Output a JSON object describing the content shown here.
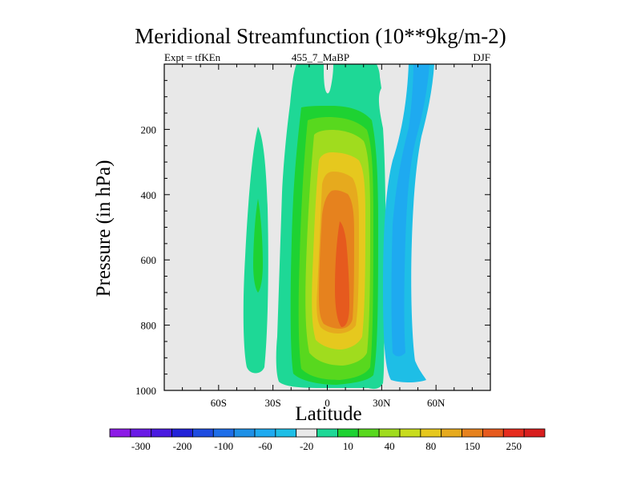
{
  "chart_data": {
    "type": "heatmap",
    "title": "Meridional Streamfunction (10**9kg/m-2)",
    "subtitle_left": "Expt = tfKEn",
    "subtitle_center": "455_7_MaBP",
    "subtitle_right": "DJF",
    "xlabel": "Latitude",
    "ylabel": "Pressure (in hPa)",
    "xlim": [
      -90,
      90
    ],
    "ylim": [
      1000,
      0
    ],
    "x_ticks": [
      {
        "value": -60,
        "label": "60S"
      },
      {
        "value": -30,
        "label": "30S"
      },
      {
        "value": 0,
        "label": "0"
      },
      {
        "value": 30,
        "label": "30N"
      },
      {
        "value": 60,
        "label": "60N"
      }
    ],
    "y_ticks": [
      200,
      400,
      600,
      800,
      1000
    ],
    "background_color": "#e8e8e8",
    "colorbar": {
      "labels": [
        "-300",
        "-200",
        "-100",
        "-60",
        "-20",
        "10",
        "40",
        "80",
        "150",
        "250"
      ],
      "colors": [
        "#8c1ae6",
        "#6a1ae6",
        "#4a1ae0",
        "#2222d8",
        "#1e4ce0",
        "#1e6ee8",
        "#1e90e6",
        "#1eaaf0",
        "#1ebee6",
        "#e8e8e8",
        "#1ed896",
        "#1ed232",
        "#58d81e",
        "#a0dc1e",
        "#c8dc1e",
        "#e6c81e",
        "#e6aa1e",
        "#e6821e",
        "#e65a1e",
        "#e62c1e",
        "#d81e1e"
      ]
    },
    "contour_levels": [
      -20,
      10,
      20,
      40,
      60,
      80,
      100,
      150,
      200
    ],
    "features": [
      {
        "name": "southern-hemisphere-cell",
        "sign": "positive",
        "max_level": 20,
        "lat_range": [
          -40,
          -30
        ],
        "p_range": [
          180,
          950
        ],
        "core_p": 600
      },
      {
        "name": "main-cell",
        "sign": "positive",
        "max_level": 200,
        "lat_range": [
          -15,
          30
        ],
        "p_range": [
          0,
          1000
        ],
        "core_lat": 8,
        "core_p": 650
      },
      {
        "name": "northern-ferrel-cell",
        "sign": "negative",
        "max_level": -20,
        "lat_range": [
          35,
          60
        ],
        "p_range": [
          0,
          980
        ],
        "core_lat": 40,
        "core_p": 650
      }
    ]
  }
}
